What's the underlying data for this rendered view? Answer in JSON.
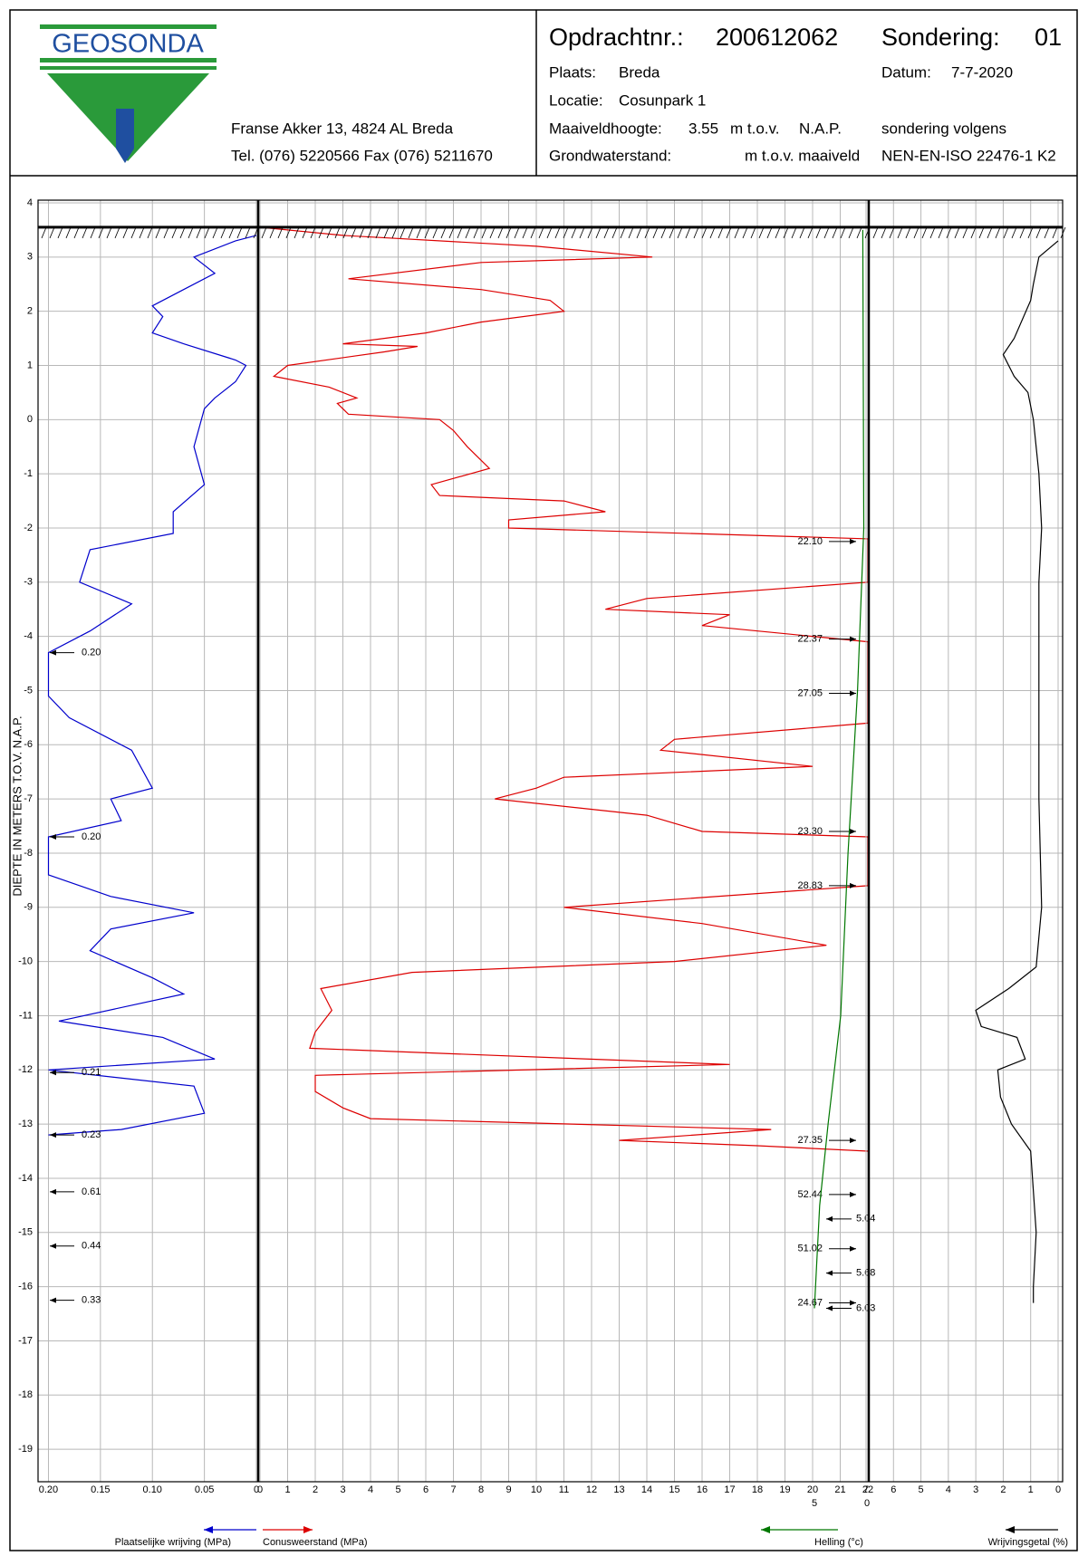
{
  "header": {
    "logo": "GEOSONDA",
    "address": "Franse Akker 13, 4824 AL Breda",
    "phone": "Tel. (076) 5220566 Fax (076) 5211670",
    "order_label": "Opdrachtnr.:",
    "order": "200612062",
    "probe_label": "Sondering:",
    "probe": "01",
    "place_label": "Plaats:",
    "place": "Breda",
    "date_label": "Datum:",
    "date": "7-7-2020",
    "location_label": "Locatie:",
    "location": "Cosunpark 1",
    "height_label": "Maaiveldhoogte:",
    "height": "3.55",
    "height_unit": "m t.o.v.",
    "height_ref": "N.A.P.",
    "groundwater_label": "Grondwaterstand:",
    "groundwater_unit": "m t.o.v. maaiveld",
    "norm_label": "sondering volgens",
    "norm": "NEN-EN-ISO 22476-1 K2"
  },
  "depth_axis": {
    "label": "DIEPTE IN METERS T.O.V.   N.A.P.",
    "lim": [
      -19.6,
      4.05
    ],
    "ticks": [
      4,
      3,
      2,
      1,
      0,
      -1,
      -2,
      -3,
      -4,
      -5,
      -6,
      -7,
      -8,
      -9,
      -10,
      -11,
      -12,
      -13,
      -14,
      -15,
      -16,
      -17,
      -18,
      -19
    ],
    "ground_level": 3.55,
    "grid": true
  },
  "chart_data": [
    {
      "type": "line",
      "xlabel": "Plaatselijke wrijving (MPa)",
      "color": "#0000cc",
      "grid": true,
      "xlim": [
        0.21,
        0
      ],
      "xticks": [
        {
          "value": 0.2,
          "label": "0.20"
        },
        {
          "value": 0.15,
          "label": "0.15"
        },
        {
          "value": 0.1,
          "label": "0.10"
        },
        {
          "value": 0.05,
          "label": "0.05"
        },
        0
      ],
      "depth": [
        3.4,
        3.3,
        3.0,
        2.7,
        2.4,
        2.1,
        1.9,
        1.6,
        1.4,
        1.1,
        1.0,
        0.7,
        0.4,
        0.2,
        -0.5,
        -1.2,
        -1.7,
        -2.1,
        -2.4,
        -3.0,
        -3.4,
        -3.9,
        -4.3,
        -5.1,
        -5.5,
        -6.1,
        -6.8,
        -7.0,
        -7.4,
        -7.7,
        -8.4,
        -8.8,
        -9.1,
        -9.4,
        -9.8,
        -10.3,
        -10.6,
        -11.1,
        -11.4,
        -11.8,
        -12.0,
        -12.3,
        -12.8,
        -13.1,
        -13.2
      ],
      "values": [
        0,
        0.02,
        0.06,
        0.04,
        0.07,
        0.1,
        0.09,
        0.1,
        0.07,
        0.02,
        0.01,
        0.02,
        0.04,
        0.05,
        0.06,
        0.05,
        0.08,
        0.08,
        0.16,
        0.17,
        0.12,
        0.16,
        0.2,
        0.2,
        0.18,
        0.12,
        0.1,
        0.14,
        0.13,
        0.2,
        0.2,
        0.14,
        0.06,
        0.14,
        0.16,
        0.1,
        0.07,
        0.19,
        0.09,
        0.04,
        0.2,
        0.06,
        0.05,
        0.13,
        0.2
      ],
      "annotations": [
        {
          "label": "0.20",
          "depth": -4.3
        },
        {
          "label": "0.20",
          "depth": -7.7
        },
        {
          "label": "0.21",
          "depth": -12.05
        },
        {
          "label": "0.23",
          "depth": -13.2
        },
        {
          "label": "0.61",
          "depth": -14.25
        },
        {
          "label": "0.44",
          "depth": -15.25
        },
        {
          "label": "0.33",
          "depth": -16.25
        }
      ]
    },
    {
      "type": "line",
      "xlabel": "Conusweerstand (MPa)",
      "color": "#dd0000",
      "grid": true,
      "xlim": [
        0,
        22
      ],
      "xticks": [
        0,
        1,
        2,
        3,
        4,
        5,
        6,
        7,
        8,
        9,
        10,
        11,
        12,
        13,
        14,
        15,
        16,
        17,
        18,
        19,
        20,
        21,
        22
      ],
      "depth": [
        3.55,
        3.4,
        3.2,
        3.0,
        2.9,
        2.6,
        2.4,
        2.2,
        2.0,
        1.8,
        1.6,
        1.4,
        1.35,
        1.25,
        1.0,
        0.8,
        0.6,
        0.4,
        0.3,
        0.1,
        0,
        -0.2,
        -0.5,
        -0.9,
        -1.2,
        -1.4,
        -1.5,
        -1.7,
        -1.85,
        -2.0,
        -2.2,
        -3.0,
        -3.3,
        -3.5,
        -3.6,
        -3.8,
        -4.0,
        -4.1,
        -5.6,
        -5.9,
        -6.1,
        -6.4,
        -6.6,
        -6.8,
        -7.0,
        -7.3,
        -7.6,
        -7.7,
        -8.6,
        -9.0,
        -9.3,
        -9.7,
        -10.0,
        -10.2,
        -10.5,
        -10.9,
        -11.3,
        -11.6,
        -11.9,
        -12.1,
        -12.4,
        -12.7,
        -12.9,
        -13.1,
        -13.3,
        -13.4,
        -13.5
      ],
      "values": [
        0,
        3,
        10,
        14.2,
        8,
        3.2,
        8,
        10.5,
        11,
        8,
        6,
        3,
        5.7,
        4.5,
        1,
        0.5,
        2.5,
        3.5,
        2.8,
        3.2,
        6.5,
        7,
        7.5,
        8.3,
        6.2,
        6.5,
        11,
        12.5,
        9,
        9,
        22,
        22,
        14,
        12.5,
        17,
        16,
        20,
        22,
        22,
        15,
        14.5,
        20,
        11,
        10,
        8.5,
        14,
        16,
        22,
        22,
        11,
        16,
        20.5,
        15,
        5.5,
        2.2,
        2.6,
        2,
        1.8,
        17,
        2,
        2,
        3,
        4,
        18.5,
        13,
        18,
        22
      ],
      "annotations": [
        {
          "label": "22.10",
          "depth": -2.25
        },
        {
          "label": "22.37",
          "depth": -4.05
        },
        {
          "label": "27.05",
          "depth": -5.05
        },
        {
          "label": "23.30",
          "depth": -7.6
        },
        {
          "label": "28.83",
          "depth": -8.6
        },
        {
          "label": "27.35",
          "depth": -13.3
        },
        {
          "label": "52.44",
          "depth": -14.3
        },
        {
          "label": "51.02",
          "depth": -15.3
        },
        {
          "label": "24.67",
          "depth": -16.3
        }
      ]
    },
    {
      "type": "line",
      "xlabel": "Helling (°c)",
      "color": "#007700",
      "grid": false,
      "xlim": [
        0,
        5
      ],
      "xticks": [
        5,
        0
      ],
      "depth": [
        3.5,
        -2,
        -5,
        -8,
        -11,
        -13,
        -14.5,
        -16.4
      ],
      "values": [
        0.4,
        0.3,
        0.9,
        1.8,
        2.5,
        3.7,
        4.5,
        5
      ],
      "annotations": [
        {
          "label": "5.04",
          "depth": -14.75
        },
        {
          "label": "5.68",
          "depth": -15.75
        },
        {
          "label": "6.03",
          "depth": -16.4
        }
      ]
    },
    {
      "type": "line",
      "xlabel": "Wrijvingsgetal (%)",
      "color": "#000000",
      "grid": true,
      "xlim": [
        7,
        0
      ],
      "xticks": [
        7,
        6,
        5,
        4,
        3,
        2,
        1,
        0
      ],
      "depth": [
        3.3,
        3.0,
        2.5,
        2.2,
        1.5,
        1.2,
        0.8,
        0.5,
        0,
        -1,
        -2,
        -3,
        -5,
        -7,
        -9,
        -10.1,
        -10.5,
        -10.9,
        -11.2,
        -11.4,
        -11.8,
        -12,
        -12.5,
        -13,
        -13.5,
        -15,
        -16,
        -16.3
      ],
      "values": [
        0,
        0.7,
        0.9,
        1,
        1.6,
        2,
        1.6,
        1.1,
        0.9,
        0.7,
        0.6,
        0.7,
        0.7,
        0.7,
        0.6,
        0.8,
        1.8,
        3,
        2.8,
        1.5,
        1.2,
        2.2,
        2.1,
        1.7,
        1,
        0.8,
        0.9,
        0.9
      ],
      "annotations": []
    }
  ]
}
